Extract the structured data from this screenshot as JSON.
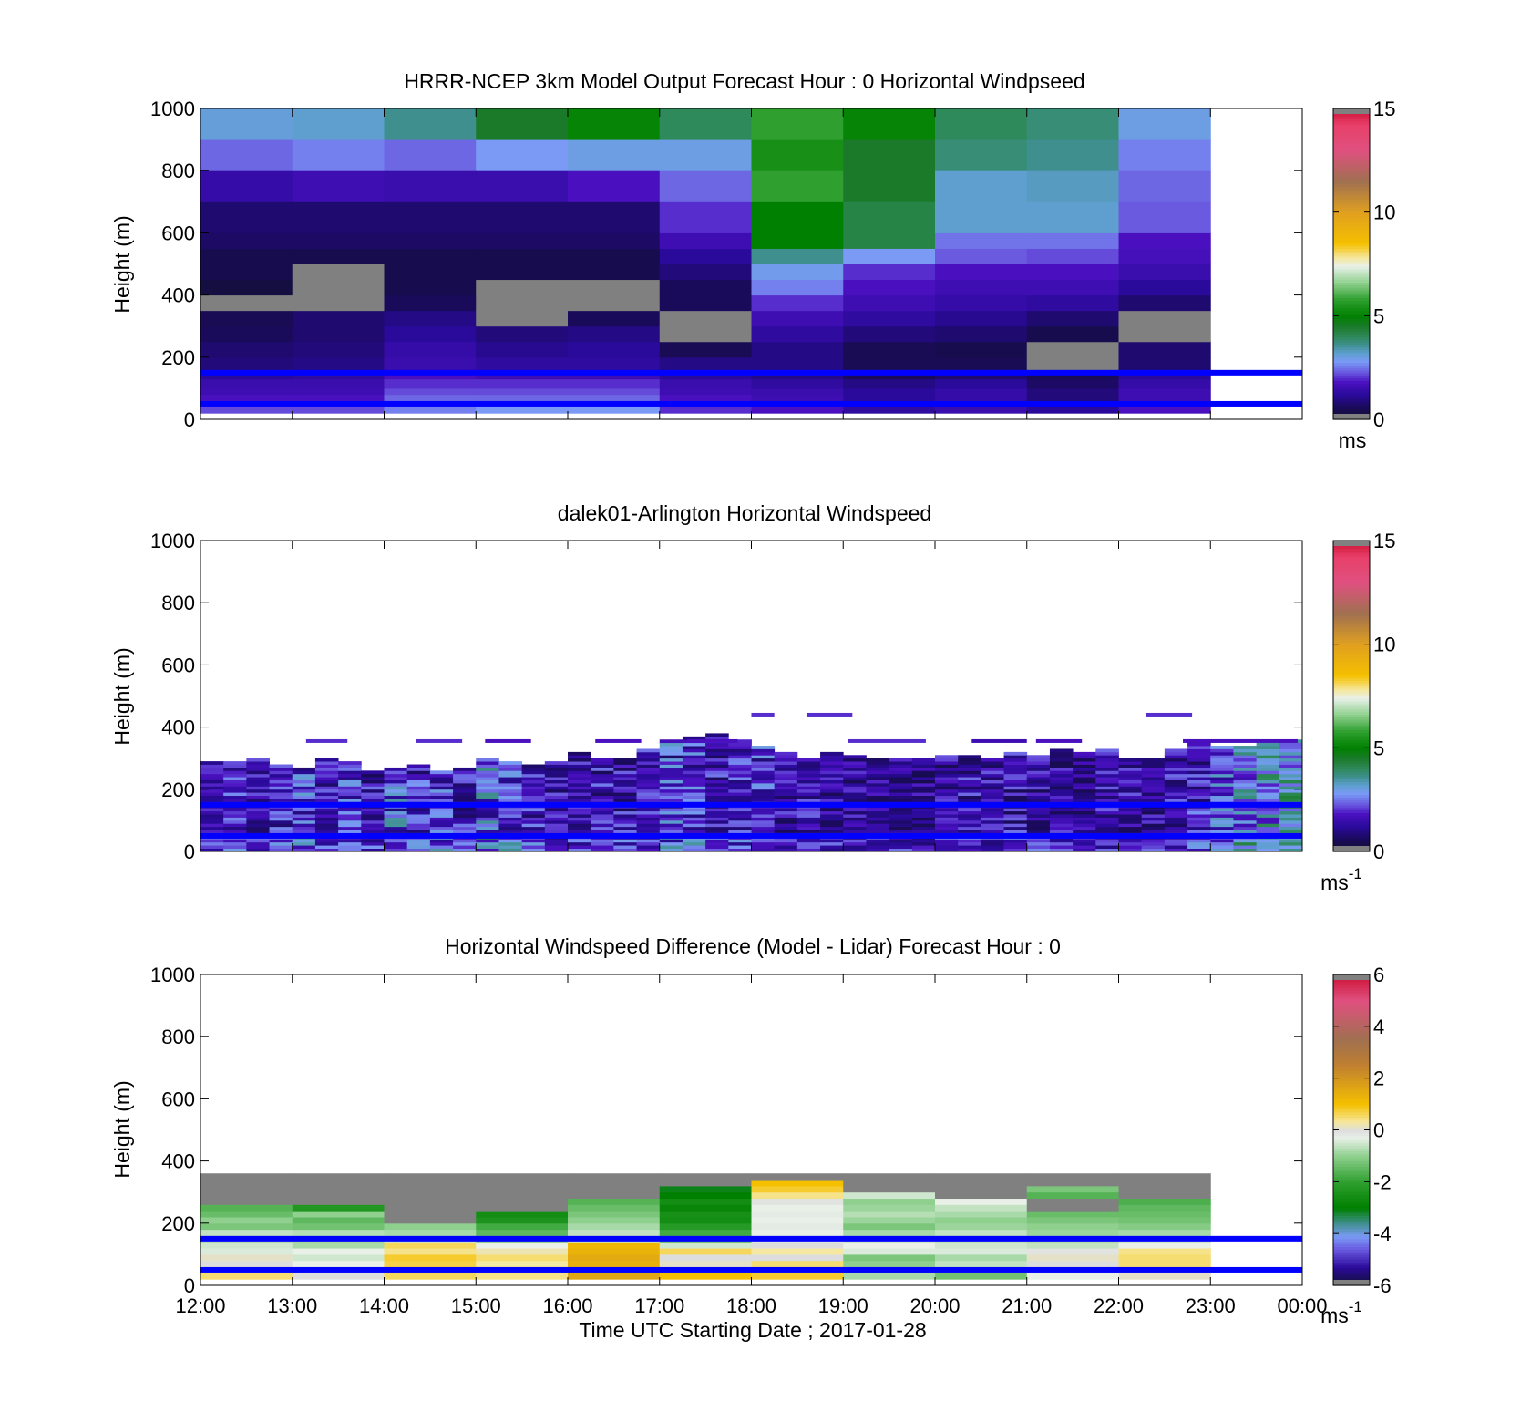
{
  "figure": {
    "xlabel": "Time UTC  Starting Date ; 2017-01-28"
  },
  "x_ticks": [
    "12:00",
    "13:00",
    "14:00",
    "15:00",
    "16:00",
    "17:00",
    "18:00",
    "19:00",
    "20:00",
    "21:00",
    "22:00",
    "23:00",
    "00:00"
  ],
  "y_ticks": [
    "0",
    "200",
    "400",
    "600",
    "800",
    "1000"
  ],
  "palette": {
    "speed_stops": [
      [
        0.0,
        "#111133"
      ],
      [
        0.6,
        "#1a0a5a"
      ],
      [
        1.2,
        "#2a0a9a"
      ],
      [
        1.8,
        "#4a10c0"
      ],
      [
        2.3,
        "#6a5ae0"
      ],
      [
        2.8,
        "#7a9af5"
      ],
      [
        3.2,
        "#5f9fd0"
      ],
      [
        3.6,
        "#3f8f8f"
      ],
      [
        4.0,
        "#2e8a5a"
      ],
      [
        4.5,
        "#1a7a2a"
      ],
      [
        5.0,
        "#008000"
      ],
      [
        5.8,
        "#2fa02f"
      ],
      [
        6.6,
        "#8fd08f"
      ],
      [
        7.4,
        "#e8f0e8"
      ],
      [
        7.8,
        "#f5e8a0"
      ],
      [
        8.5,
        "#f5c000"
      ],
      [
        10.0,
        "#e0a020"
      ],
      [
        11.5,
        "#a07050"
      ],
      [
        13.0,
        "#e05080"
      ],
      [
        14.2,
        "#e8406a"
      ],
      [
        15.0,
        "#cc1133"
      ]
    ],
    "diff_stops": [
      [
        -6.0,
        "#111133"
      ],
      [
        -5.3,
        "#2a0a9a"
      ],
      [
        -4.6,
        "#6a5ae0"
      ],
      [
        -4.1,
        "#7a9af5"
      ],
      [
        -3.6,
        "#3f8f8f"
      ],
      [
        -3.0,
        "#008000"
      ],
      [
        -2.0,
        "#2fa02f"
      ],
      [
        -1.0,
        "#8fd08f"
      ],
      [
        -0.3,
        "#e8f0e8"
      ],
      [
        0.0,
        "#dddddd"
      ],
      [
        0.3,
        "#f5e8a0"
      ],
      [
        1.0,
        "#f5c000"
      ],
      [
        2.5,
        "#c08030"
      ],
      [
        3.5,
        "#a07050"
      ],
      [
        5.0,
        "#e05080"
      ],
      [
        6.0,
        "#cc1133"
      ]
    ],
    "missing": "#808080",
    "line": "#0000ff"
  },
  "chart_data": [
    {
      "type": "heatmap",
      "title": "HRRR-NCEP 3km Model Output   Forecast Hour : 0 Horizontal Windpseed",
      "xlabel": "",
      "ylabel": "Height (m)",
      "xlim": [
        12,
        24
      ],
      "ylim": [
        0,
        1000
      ],
      "grid": false,
      "colorbar": {
        "label": "ms",
        "min": 0,
        "max": 15,
        "ticks": [
          "0",
          "5",
          "10",
          "15"
        ]
      },
      "reference_lines_m": [
        50,
        150
      ],
      "column_starts_h": [
        12,
        13,
        14,
        15,
        16,
        17,
        18,
        19,
        20,
        21,
        22
      ],
      "column_width_h": 1,
      "row_edges_m": [
        20,
        40,
        60,
        80,
        100,
        130,
        160,
        200,
        250,
        300,
        350,
        400,
        450,
        500,
        550,
        600,
        700,
        800,
        900,
        1000
      ],
      "rows_legend": "values[column][row] in m/s, rows from low to high heights; null = no data",
      "values": [
        [
          2.2,
          2.0,
          1.8,
          1.6,
          1.5,
          1.2,
          0.9,
          0.8,
          0.6,
          0.5,
          null,
          0.2,
          0.4,
          0.4,
          0.7,
          0.8,
          1.4,
          2.4,
          3.1,
          3.6
        ],
        [
          2.2,
          2.0,
          1.8,
          1.6,
          1.5,
          1.3,
          1.0,
          0.9,
          0.8,
          0.8,
          null,
          null,
          null,
          0.4,
          0.7,
          0.8,
          1.6,
          2.6,
          3.2,
          3.8
        ],
        [
          2.6,
          2.6,
          2.4,
          2.2,
          2.0,
          1.8,
          1.5,
          1.4,
          1.2,
          1.0,
          0.6,
          0.4,
          0.4,
          0.4,
          0.7,
          0.8,
          1.5,
          2.4,
          3.6,
          4.2
        ],
        [
          2.8,
          2.6,
          2.4,
          2.2,
          2.0,
          1.6,
          1.3,
          1.1,
          0.9,
          null,
          null,
          null,
          0.4,
          0.4,
          0.7,
          0.8,
          1.5,
          2.8,
          4.5,
          4.7
        ],
        [
          2.8,
          2.6,
          2.4,
          2.2,
          2.0,
          1.6,
          1.3,
          1.2,
          1.0,
          0.6,
          null,
          null,
          0.4,
          0.4,
          0.7,
          0.8,
          1.8,
          3.0,
          5.1,
          5.2
        ],
        [
          2.0,
          2.0,
          1.8,
          1.6,
          1.5,
          1.2,
          1.0,
          0.5,
          null,
          null,
          0.6,
          0.6,
          0.9,
          1.2,
          1.6,
          2.0,
          2.4,
          3.0,
          4.0,
          4.4
        ],
        [
          1.8,
          1.8,
          1.6,
          1.5,
          1.3,
          1.0,
          1.0,
          1.0,
          1.3,
          1.6,
          2.0,
          2.6,
          2.9,
          3.6,
          5.0,
          5.0,
          5.8,
          5.4,
          5.8,
          5.8
        ],
        [
          1.3,
          1.2,
          1.2,
          1.2,
          1.0,
          0.6,
          0.5,
          0.5,
          0.9,
          1.3,
          1.6,
          1.8,
          2.0,
          2.8,
          4.2,
          4.2,
          4.5,
          4.5,
          5.1,
          5.2
        ],
        [
          1.5,
          1.4,
          1.4,
          1.4,
          1.2,
          0.8,
          0.5,
          0.4,
          0.8,
          1.1,
          1.4,
          1.6,
          1.8,
          2.3,
          2.5,
          3.2,
          3.2,
          3.8,
          4.0,
          4.7
        ],
        [
          1.2,
          1.0,
          0.9,
          0.9,
          0.7,
          0.5,
          null,
          null,
          0.4,
          0.8,
          1.3,
          1.6,
          1.8,
          2.2,
          2.5,
          3.2,
          3.3,
          3.6,
          3.8,
          4.4
        ],
        [
          1.8,
          1.6,
          1.6,
          1.6,
          1.4,
          1.2,
          0.8,
          0.8,
          null,
          null,
          0.8,
          1.2,
          1.5,
          1.7,
          1.8,
          2.3,
          2.4,
          2.6,
          3.0,
          3.2
        ]
      ]
    },
    {
      "type": "heatmap",
      "title": "dalek01-Arlington  Horizontal Windspeed",
      "xlabel": "",
      "ylabel": "Height (m)",
      "xlim": [
        12,
        24
      ],
      "ylim": [
        0,
        1000
      ],
      "grid": false,
      "colorbar": {
        "label": "ms",
        "label_superscript": "-1",
        "min": 0,
        "max": 15,
        "ticks": [
          "0",
          "5",
          "10",
          "15"
        ]
      },
      "reference_lines_m": [
        50,
        150
      ],
      "column_step_h": 0.25,
      "columns_legend": "columns start at 12:00 every 0.25 h; each column has mean speed, top height of data and spread",
      "column_mean_speed": [
        1.6,
        1.8,
        1.5,
        1.7,
        2.0,
        1.6,
        1.9,
        1.5,
        2.2,
        1.8,
        1.9,
        1.6,
        2.3,
        2.0,
        1.7,
        1.5,
        1.4,
        1.6,
        1.5,
        1.7,
        2.0,
        1.9,
        1.6,
        1.7,
        1.9,
        1.4,
        1.5,
        1.4,
        1.3,
        1.2,
        1.3,
        1.2,
        1.4,
        1.5,
        1.4,
        1.5,
        1.4,
        1.3,
        1.2,
        1.5,
        1.4,
        1.3,
        1.6,
        1.7,
        2.3,
        2.6,
        3.0,
        3.2
      ],
      "column_top_m": [
        290,
        290,
        300,
        280,
        270,
        300,
        290,
        260,
        270,
        280,
        260,
        270,
        300,
        290,
        280,
        290,
        320,
        300,
        300,
        330,
        360,
        370,
        380,
        360,
        340,
        320,
        300,
        320,
        310,
        300,
        300,
        300,
        310,
        310,
        300,
        320,
        310,
        330,
        320,
        330,
        300,
        300,
        330,
        360,
        340,
        340,
        360,
        360
      ],
      "column_spread": [
        0.8,
        0.9,
        0.8,
        1.0,
        1.2,
        0.9,
        1.1,
        1.0,
        1.4,
        1.1,
        1.2,
        1.0,
        1.5,
        1.2,
        1.0,
        0.9,
        0.9,
        1.0,
        1.0,
        1.0,
        1.3,
        1.2,
        1.0,
        1.0,
        1.1,
        0.9,
        0.9,
        0.8,
        0.8,
        0.8,
        0.8,
        0.8,
        0.9,
        1.0,
        0.9,
        1.0,
        0.9,
        0.9,
        0.8,
        1.0,
        0.9,
        0.9,
        1.0,
        1.1,
        1.2,
        1.3,
        1.3,
        1.2
      ],
      "isolated_segments": [
        {
          "x_h": 13.15,
          "w_h": 0.45,
          "height_m": 355,
          "value": 2.0
        },
        {
          "x_h": 14.35,
          "w_h": 0.5,
          "height_m": 355,
          "value": 2.0
        },
        {
          "x_h": 15.1,
          "w_h": 0.5,
          "height_m": 355,
          "value": 1.8
        },
        {
          "x_h": 16.3,
          "w_h": 0.5,
          "height_m": 355,
          "value": 1.8
        },
        {
          "x_h": 17.3,
          "w_h": 0.55,
          "height_m": 355,
          "value": 1.8
        },
        {
          "x_h": 18.0,
          "w_h": 0.25,
          "height_m": 440,
          "value": 2.0
        },
        {
          "x_h": 18.6,
          "w_h": 0.5,
          "height_m": 440,
          "value": 2.0
        },
        {
          "x_h": 19.05,
          "w_h": 0.85,
          "height_m": 355,
          "value": 2.0
        },
        {
          "x_h": 20.4,
          "w_h": 0.6,
          "height_m": 355,
          "value": 1.6
        },
        {
          "x_h": 21.1,
          "w_h": 0.5,
          "height_m": 355,
          "value": 1.8
        },
        {
          "x_h": 22.3,
          "w_h": 0.5,
          "height_m": 440,
          "value": 2.0
        },
        {
          "x_h": 22.7,
          "w_h": 1.25,
          "height_m": 355,
          "value": 1.8
        },
        {
          "x_h": 24.0,
          "w_h": 0.45,
          "height_m": 355,
          "value": 2.8
        }
      ]
    },
    {
      "type": "heatmap",
      "title": "Horizontal Windspeed Difference (Model - Lidar) Forecast Hour : 0",
      "xlabel": "Time UTC  Starting Date ; 2017-01-28",
      "ylabel": "Height (m)",
      "xlim": [
        12,
        24
      ],
      "ylim": [
        0,
        1000
      ],
      "grid": false,
      "colorbar": {
        "label": "ms",
        "label_superscript": "-1",
        "min": -6,
        "max": 6,
        "ticks": [
          "-6",
          "-4",
          "-2",
          "0",
          "2",
          "4",
          "6"
        ]
      },
      "reference_lines_m": [
        50,
        150
      ],
      "column_starts_h": [
        12,
        13,
        14,
        15,
        16,
        17,
        18,
        19,
        20,
        21,
        22
      ],
      "column_width_h": 1,
      "row_edges_m": [
        20,
        40,
        60,
        80,
        100,
        120,
        140,
        160,
        180,
        200,
        220,
        240,
        260,
        280,
        300,
        320,
        340,
        360
      ],
      "rows_legend": "values[column][row] in m/s, rows from low to high heights; null = no data",
      "values": [
        [
          0.5,
          -0.2,
          0.0,
          0.1,
          -0.4,
          -0.5,
          -0.8,
          -0.6,
          -1.2,
          -1.0,
          -1.4,
          -1.6,
          null,
          null,
          null,
          null,
          null
        ],
        [
          0.0,
          0.1,
          -0.3,
          -0.5,
          -0.3,
          -0.8,
          -0.9,
          -0.7,
          -1.3,
          -1.5,
          -1.0,
          -2.3,
          null,
          null,
          null,
          null,
          null
        ],
        [
          0.6,
          0.5,
          0.7,
          0.8,
          0.4,
          0.6,
          -0.5,
          -0.8,
          -1.0,
          null,
          null,
          null,
          null,
          null,
          null,
          null,
          null
        ],
        [
          0.4,
          0.5,
          0.3,
          0.5,
          0.2,
          -0.3,
          -1.2,
          -1.5,
          -1.8,
          -2.4,
          -2.6,
          null,
          null,
          null,
          null,
          null,
          null
        ],
        [
          1.6,
          1.8,
          1.4,
          1.5,
          1.3,
          1.2,
          -0.5,
          -0.6,
          -0.8,
          -1.0,
          -1.2,
          -1.4,
          -1.6,
          null,
          null,
          null,
          null
        ],
        [
          1.0,
          0.8,
          0.1,
          0.0,
          0.6,
          -0.5,
          -1.5,
          -1.8,
          -2.2,
          -2.6,
          -2.5,
          -2.8,
          -2.6,
          -3.0,
          -3.1,
          null,
          null
        ],
        [
          0.8,
          0.2,
          0.5,
          0.0,
          0.3,
          0.0,
          -0.4,
          -0.3,
          -0.2,
          -0.3,
          -0.2,
          -0.3,
          -0.1,
          0.4,
          0.8,
          1.0,
          null
        ],
        [
          -0.8,
          -1.1,
          -1.0,
          -1.2,
          -0.4,
          -0.3,
          -0.6,
          -0.8,
          -1.2,
          -0.9,
          -0.7,
          -0.9,
          -1.0,
          -0.5,
          null,
          null,
          null
        ],
        [
          -1.3,
          -0.9,
          -0.6,
          -0.8,
          -0.4,
          -0.5,
          -0.7,
          -0.6,
          -0.9,
          -1.0,
          -0.8,
          -0.6,
          -0.3,
          null,
          null,
          null,
          null
        ],
        [
          -0.3,
          -0.4,
          0.0,
          0.1,
          -0.1,
          -0.6,
          -0.8,
          -0.9,
          -1.0,
          -1.2,
          -1.4,
          null,
          null,
          -1.6,
          -1.2,
          null,
          null
        ],
        [
          0.1,
          0.3,
          0.5,
          0.5,
          0.4,
          -0.3,
          -0.6,
          -0.8,
          -1.1,
          -1.3,
          -1.4,
          -1.5,
          -1.7,
          null,
          null,
          null,
          null
        ]
      ]
    }
  ]
}
